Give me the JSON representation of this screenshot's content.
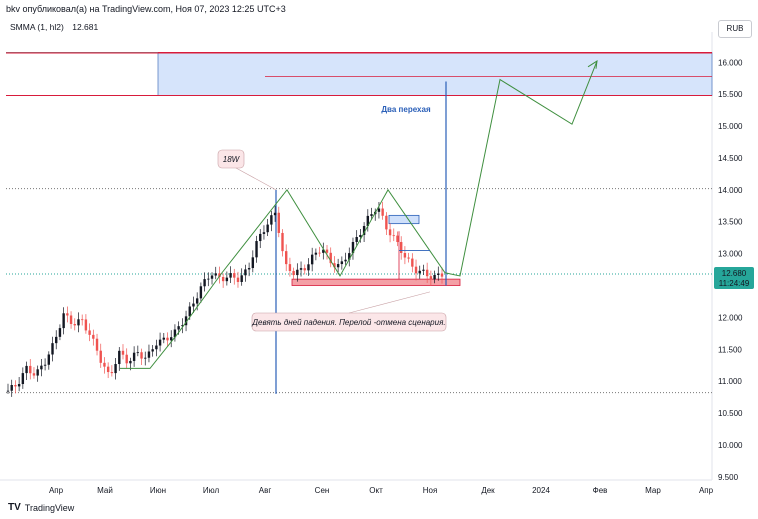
{
  "header": {
    "publisher": "bkv опубликовал(а) на TradingView.com, Ноя 07, 2023 12:25 UTC+3"
  },
  "indicator": {
    "name": "SMMA (1, hl2)",
    "value": "12.681"
  },
  "currency": "RUB",
  "footer": {
    "brand": "TradingView"
  },
  "chart_data": {
    "type": "candlestick",
    "y_ticks": [
      "9.500",
      "10.000",
      "10.500",
      "11.000",
      "11.500",
      "12.000",
      "12.500",
      "13.000",
      "13.500",
      "14.000",
      "14.500",
      "15.000",
      "15.500",
      "16.000"
    ],
    "ylim": [
      9.45,
      16.35
    ],
    "x_labels": [
      "Апр",
      "Май",
      "Июн",
      "Июл",
      "Авг",
      "Сен",
      "Окт",
      "Ноя",
      "Дек",
      "2024",
      "Фев",
      "Мар",
      "Апр"
    ],
    "price_label": {
      "value": "12.680",
      "time": "11:24:49"
    },
    "annotations": {
      "wave_label": "18W",
      "note": "Девять дней падения. Перелой -отмена сценария.",
      "title": "Два перехая"
    },
    "levels": {
      "top_line": 16.15,
      "zone_low": 15.48,
      "zone_mid": 15.78,
      "support": 12.55,
      "bottom": 10.82,
      "resistance": 14.02
    },
    "colors": {
      "up": "#26a69a",
      "down": "#ef5350",
      "zone": "#d6e4fb",
      "red_line": "#d81b3b",
      "blue": "#2a5fb8",
      "green": "#3f8f3f"
    },
    "price_path": [
      [
        0,
        10.85
      ],
      [
        5,
        10.95
      ],
      [
        10,
        11.2
      ],
      [
        15,
        11.1
      ],
      [
        20,
        11.3
      ],
      [
        25,
        11.6
      ],
      [
        30,
        12.05
      ],
      [
        35,
        11.9
      ],
      [
        40,
        11.95
      ],
      [
        45,
        11.7
      ],
      [
        50,
        11.35
      ],
      [
        55,
        11.05
      ],
      [
        60,
        11.45
      ],
      [
        65,
        11.3
      ],
      [
        70,
        11.45
      ],
      [
        75,
        11.35
      ],
      [
        80,
        11.6
      ],
      [
        85,
        11.65
      ],
      [
        90,
        11.75
      ],
      [
        95,
        11.95
      ],
      [
        100,
        12.2
      ],
      [
        105,
        12.5
      ],
      [
        110,
        12.7
      ],
      [
        115,
        12.6
      ],
      [
        120,
        12.65
      ],
      [
        125,
        12.6
      ],
      [
        130,
        12.75
      ],
      [
        135,
        13.2
      ],
      [
        140,
        13.45
      ],
      [
        145,
        13.65
      ],
      [
        150,
        12.8
      ],
      [
        155,
        12.7
      ],
      [
        160,
        12.75
      ],
      [
        165,
        12.95
      ],
      [
        170,
        13.1
      ],
      [
        175,
        12.85
      ],
      [
        180,
        12.8
      ],
      [
        185,
        13.05
      ],
      [
        190,
        13.3
      ],
      [
        195,
        13.55
      ],
      [
        200,
        13.75
      ],
      [
        205,
        13.4
      ],
      [
        210,
        13.2
      ],
      [
        215,
        12.95
      ],
      [
        220,
        12.75
      ],
      [
        225,
        12.7
      ],
      [
        230,
        12.62
      ],
      [
        235,
        12.68
      ]
    ]
  }
}
